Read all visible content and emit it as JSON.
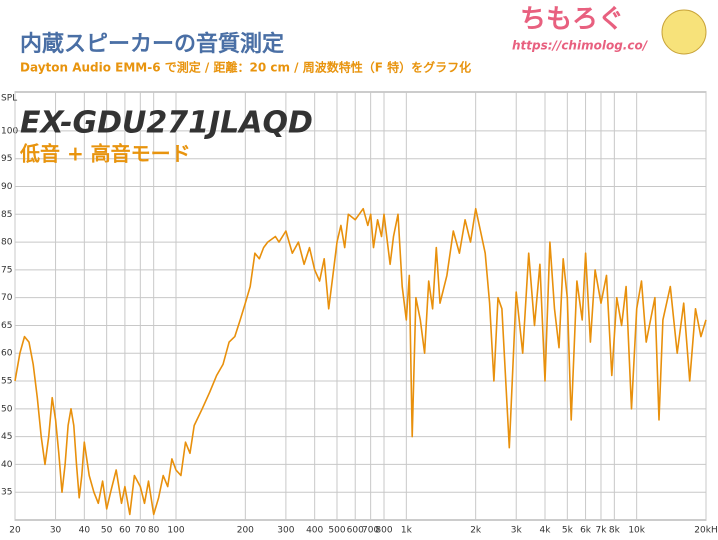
{
  "chart_data": {
    "type": "line",
    "title": "内蔵スピーカーの音質測定",
    "subtitle": "Dayton Audio EMM-6 で測定 / 距離：20 cm / 周波数特性（F 特）をグラフ化",
    "logo": "ちもろぐ",
    "url": "https://chimolog.co/",
    "annotations": [
      "EX-GDU271JLAQD",
      "低音 + 高音モード"
    ],
    "y_label": "SPL",
    "x_scale": "log",
    "grid": true,
    "color": "#e8900c",
    "xlim": [
      20,
      20000
    ],
    "ylim": [
      30,
      107
    ],
    "xticks": [
      20,
      30,
      40,
      50,
      60,
      70,
      80,
      100,
      200,
      300,
      400,
      500,
      600,
      700,
      800,
      {
        "value": 1000,
        "label": "1k"
      },
      {
        "value": 2000,
        "label": "2k"
      },
      {
        "value": 3000,
        "label": "3k"
      },
      {
        "value": 4000,
        "label": "4k"
      },
      {
        "value": 5000,
        "label": "5k"
      },
      {
        "value": 6000,
        "label": "6k"
      },
      {
        "value": 7000,
        "label": "7k"
      },
      {
        "value": 8000,
        "label": "8k"
      },
      {
        "value": 10000,
        "label": "10k"
      },
      {
        "value": 20000,
        "label": "20kH"
      }
    ],
    "yticks": [
      35,
      40,
      45,
      50,
      55,
      60,
      65,
      70,
      75,
      80,
      85,
      90,
      95,
      100
    ],
    "x": [
      20,
      21,
      22,
      23,
      24,
      25,
      26,
      27,
      28,
      29,
      30,
      31,
      32,
      33,
      34,
      35,
      36,
      37,
      38,
      39,
      40,
      42,
      44,
      46,
      48,
      50,
      52,
      55,
      58,
      60,
      63,
      66,
      70,
      73,
      76,
      80,
      84,
      88,
      92,
      96,
      100,
      105,
      110,
      115,
      120,
      130,
      140,
      150,
      160,
      170,
      180,
      190,
      200,
      210,
      220,
      230,
      240,
      250,
      270,
      280,
      300,
      320,
      340,
      360,
      380,
      400,
      420,
      440,
      460,
      480,
      500,
      520,
      540,
      560,
      600,
      650,
      680,
      700,
      720,
      750,
      780,
      800,
      850,
      880,
      920,
      960,
      1000,
      1030,
      1060,
      1100,
      1150,
      1200,
      1250,
      1300,
      1350,
      1400,
      1500,
      1600,
      1700,
      1800,
      1900,
      2000,
      2100,
      2200,
      2300,
      2400,
      2500,
      2600,
      2800,
      3000,
      3200,
      3400,
      3600,
      3800,
      4000,
      4200,
      4400,
      4600,
      4800,
      5000,
      5200,
      5500,
      5800,
      6000,
      6300,
      6600,
      7000,
      7400,
      7800,
      8200,
      8600,
      9000,
      9500,
      10000,
      10500,
      11000,
      12000,
      12500,
      13000,
      14000,
      15000,
      16000,
      17000,
      18000,
      19000,
      20000
    ],
    "values": [
      55,
      60,
      63,
      62,
      58,
      52,
      45,
      40,
      45,
      52,
      48,
      42,
      35,
      40,
      47,
      50,
      47,
      40,
      34,
      38,
      44,
      38,
      35,
      33,
      37,
      32,
      35,
      39,
      33,
      36,
      31,
      38,
      36,
      33,
      37,
      31,
      34,
      38,
      36,
      41,
      39,
      38,
      44,
      42,
      47,
      50,
      53,
      56,
      58,
      62,
      63,
      66,
      69,
      72,
      78,
      77,
      79,
      80,
      81,
      80,
      82,
      78,
      80,
      76,
      79,
      75,
      73,
      77,
      68,
      74,
      80,
      83,
      79,
      85,
      84,
      86,
      83,
      85,
      79,
      84,
      81,
      85,
      76,
      81,
      85,
      72,
      66,
      74,
      45,
      70,
      66,
      60,
      73,
      68,
      79,
      69,
      74,
      82,
      78,
      84,
      80,
      86,
      82,
      78,
      69,
      55,
      70,
      68,
      43,
      71,
      60,
      78,
      65,
      76,
      55,
      80,
      68,
      61,
      77,
      70,
      48,
      73,
      66,
      78,
      62,
      75,
      69,
      74,
      56,
      70,
      65,
      72,
      50,
      68,
      73,
      62,
      70,
      48,
      66,
      72,
      60,
      69,
      55,
      68,
      63,
      66
    ]
  }
}
